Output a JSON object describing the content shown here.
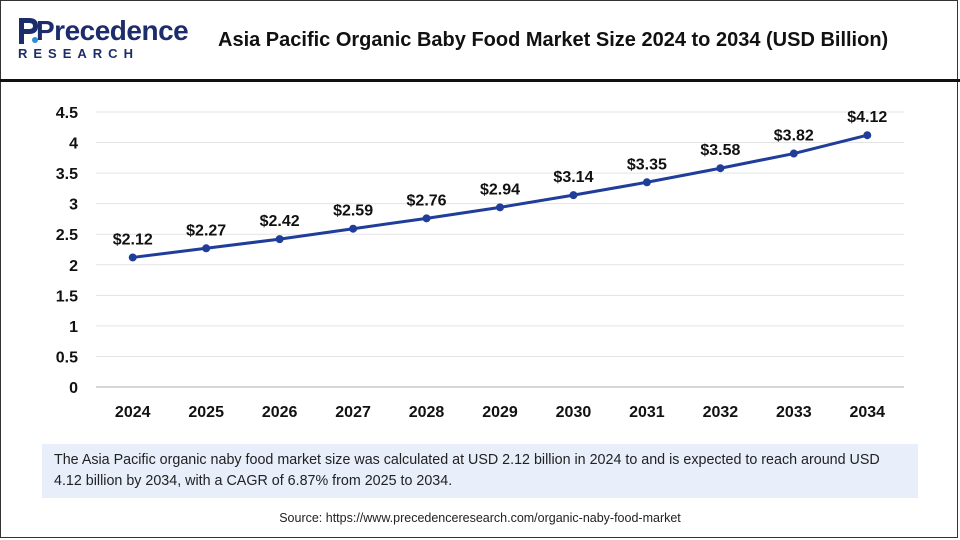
{
  "header": {
    "logo_name": "Precedence",
    "logo_sub": "RESEARCH",
    "title": "Asia Pacific Organic Baby Food Market Size 2024 to 2034 (USD Billion)"
  },
  "chart_data": {
    "type": "line",
    "title": "Asia Pacific Organic Baby Food Market Size 2024 to 2034 (USD Billion)",
    "xlabel": "",
    "ylabel": "",
    "categories": [
      "2024",
      "2025",
      "2026",
      "2027",
      "2028",
      "2029",
      "2030",
      "2031",
      "2032",
      "2033",
      "2034"
    ],
    "values": [
      2.12,
      2.27,
      2.42,
      2.59,
      2.76,
      2.94,
      3.14,
      3.35,
      3.58,
      3.82,
      4.12
    ],
    "data_labels": [
      "$2.12",
      "$2.27",
      "$2.42",
      "$2.59",
      "$2.76",
      "$2.94",
      "$3.14",
      "$3.35",
      "$3.58",
      "$3.82",
      "$4.12"
    ],
    "ylim": [
      0,
      4.5
    ],
    "yticks": [
      "0",
      "0.5",
      "1",
      "1.5",
      "2",
      "2.5",
      "3",
      "3.5",
      "4",
      "4.5"
    ],
    "grid": true,
    "line_color": "#1f3d99"
  },
  "caption": "The Asia Pacific organic naby food market size was calculated at USD 2.12 billion in 2024 to and is expected to reach around USD 4.12 billion by 2034, with a CAGR of 6.87% from 2025 to 2034.",
  "source": "Source: https://www.precedenceresearch.com/organic-naby-food-market"
}
